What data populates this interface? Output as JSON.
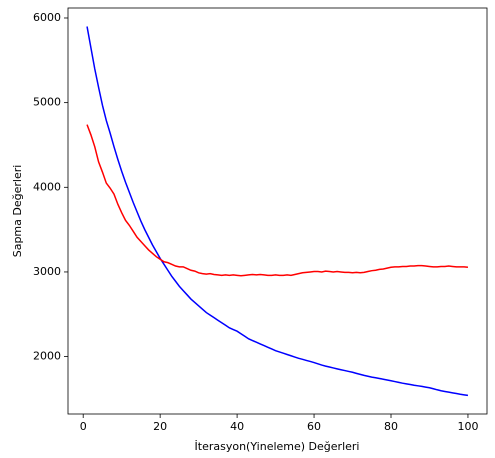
{
  "chart_data": {
    "type": "line",
    "xlabel": "İterasyon(Yineleme) Değerleri",
    "ylabel": "Sapma Değerleri",
    "x": [
      1,
      2,
      3,
      4,
      5,
      6,
      7,
      8,
      9,
      10,
      11,
      12,
      13,
      14,
      15,
      16,
      17,
      18,
      19,
      20,
      21,
      22,
      23,
      24,
      25,
      26,
      27,
      28,
      29,
      30,
      31,
      32,
      33,
      34,
      35,
      36,
      37,
      38,
      39,
      40,
      41,
      42,
      43,
      44,
      45,
      46,
      47,
      48,
      49,
      50,
      51,
      52,
      53,
      54,
      55,
      56,
      57,
      58,
      59,
      60,
      61,
      62,
      63,
      64,
      65,
      66,
      67,
      68,
      69,
      70,
      71,
      72,
      73,
      74,
      75,
      76,
      77,
      78,
      79,
      80,
      81,
      82,
      83,
      84,
      85,
      86,
      87,
      88,
      89,
      90,
      91,
      92,
      93,
      94,
      95,
      96,
      97,
      98,
      99,
      100
    ],
    "series": [
      {
        "color": "blue",
        "values": [
          5900,
          5650,
          5400,
          5180,
          4970,
          4790,
          4640,
          4480,
          4330,
          4190,
          4060,
          3940,
          3820,
          3710,
          3600,
          3500,
          3410,
          3320,
          3240,
          3160,
          3090,
          3020,
          2950,
          2890,
          2830,
          2780,
          2730,
          2680,
          2640,
          2600,
          2560,
          2520,
          2490,
          2460,
          2430,
          2400,
          2370,
          2340,
          2320,
          2300,
          2270,
          2240,
          2210,
          2190,
          2170,
          2150,
          2130,
          2110,
          2090,
          2070,
          2055,
          2040,
          2025,
          2010,
          1995,
          1980,
          1968,
          1955,
          1943,
          1930,
          1915,
          1900,
          1888,
          1877,
          1866,
          1855,
          1845,
          1835,
          1825,
          1815,
          1802,
          1790,
          1778,
          1768,
          1758,
          1750,
          1742,
          1733,
          1724,
          1715,
          1705,
          1695,
          1686,
          1678,
          1670,
          1662,
          1655,
          1648,
          1640,
          1632,
          1620,
          1608,
          1597,
          1588,
          1580,
          1572,
          1564,
          1555,
          1548,
          1542
        ]
      },
      {
        "color": "red",
        "values": [
          4740,
          4620,
          4480,
          4300,
          4180,
          4050,
          3990,
          3920,
          3800,
          3700,
          3610,
          3550,
          3480,
          3410,
          3360,
          3310,
          3260,
          3220,
          3180,
          3150,
          3120,
          3110,
          3090,
          3070,
          3060,
          3060,
          3040,
          3020,
          3010,
          2990,
          2980,
          2975,
          2980,
          2970,
          2965,
          2960,
          2965,
          2960,
          2965,
          2960,
          2955,
          2960,
          2965,
          2970,
          2965,
          2970,
          2965,
          2960,
          2960,
          2965,
          2960,
          2960,
          2965,
          2960,
          2970,
          2980,
          2990,
          2995,
          3000,
          3005,
          3005,
          3000,
          3010,
          3005,
          3000,
          3005,
          3000,
          2995,
          2995,
          2990,
          2995,
          2990,
          2995,
          3005,
          3015,
          3020,
          3030,
          3035,
          3045,
          3055,
          3060,
          3060,
          3065,
          3065,
          3070,
          3070,
          3075,
          3075,
          3070,
          3065,
          3060,
          3060,
          3065,
          3065,
          3070,
          3065,
          3060,
          3060,
          3060,
          3055
        ]
      }
    ],
    "xlim": [
      -3.95,
      104.95
    ],
    "ylim": [
      1322,
      6118
    ],
    "xticks": [
      0,
      20,
      40,
      60,
      80,
      100
    ],
    "yticks": [
      2000,
      3000,
      4000,
      5000,
      6000
    ]
  }
}
